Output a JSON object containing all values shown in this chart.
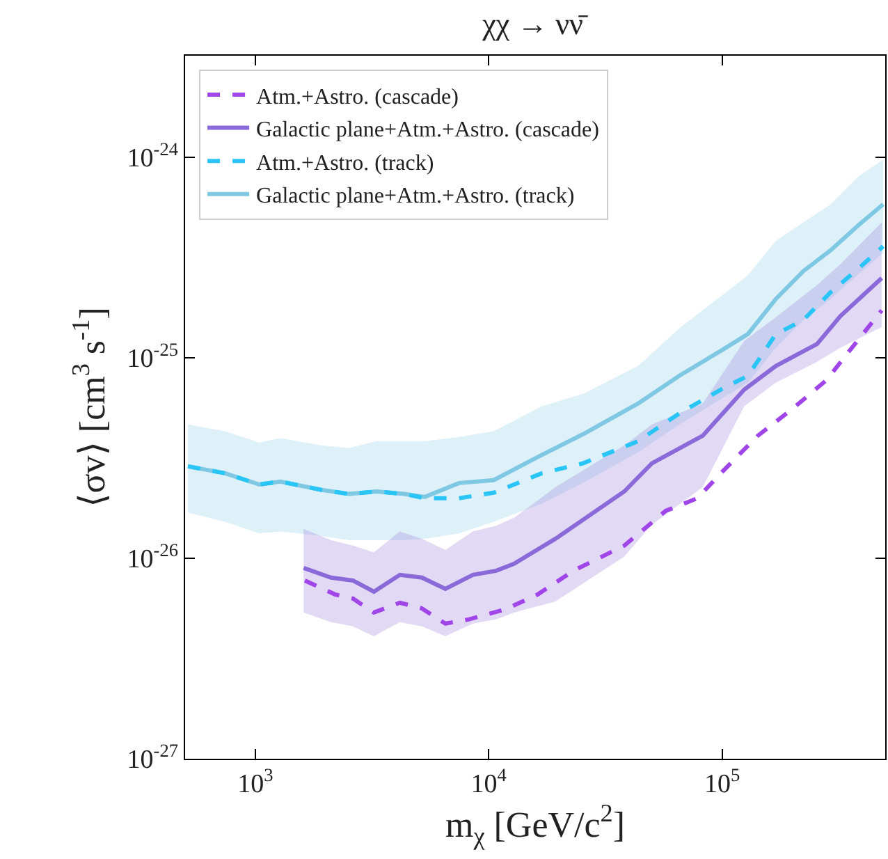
{
  "chart_data": {
    "type": "line",
    "title": "χχ → νν̄",
    "xlabel": "m$_{χ}$ [GeV/c$^{2}$]",
    "ylabel": "⟨σv⟩ [cm$^{3}$ s$^{-1}$]",
    "log": "xy",
    "grid": false,
    "legend": "top left",
    "marker": "none",
    "xlim": [
      500,
      500000
    ],
    "ylim": [
      1e-27,
      3.2e-24
    ],
    "xticks": [
      {
        "value": 1000,
        "label": "10$^{3}$"
      },
      {
        "value": 10000,
        "label": "10$^{4}$"
      },
      {
        "value": 100000,
        "label": "10$^{5}$"
      }
    ],
    "yticks": [
      {
        "value": 1e-27,
        "label": "10$^{-27}$"
      },
      {
        "value": 1e-26,
        "label": "10$^{-26}$"
      },
      {
        "value": 1e-25,
        "label": "10$^{-25}$"
      },
      {
        "value": 1e-24,
        "label": "10$^{-24}$"
      }
    ],
    "series": [
      {
        "name": "Galactic plane+Atm.+Astro. (track)",
        "color": "#7ec8e3",
        "line_style": "solid",
        "x": [
          514,
          741,
          1040,
          1280,
          1920,
          2520,
          3300,
          4340,
          5320,
          7460,
          10500,
          16870,
          25350,
          43650,
          65600,
          98600,
          129000,
          170000,
          223000,
          292000,
          384000,
          490000
        ],
        "values": [
          2.87e-26,
          2.65e-26,
          2.33e-26,
          2.41e-26,
          2.19e-26,
          2.09e-26,
          2.15e-26,
          2.09e-26,
          2.02e-26,
          2.37e-26,
          2.45e-26,
          3.27e-26,
          4.15e-26,
          5.9e-26,
          8.12e-26,
          1.08e-25,
          1.31e-25,
          1.96e-25,
          2.7e-25,
          3.43e-25,
          4.57e-25,
          5.81e-25
        ],
        "upper": [
          4.64e-26,
          4.29e-26,
          3.77e-26,
          3.96e-26,
          3.65e-26,
          3.54e-26,
          3.83e-26,
          3.83e-26,
          3.83e-26,
          4.02e-26,
          4.29e-26,
          5.71e-26,
          6.6e-26,
          9.08e-26,
          1.4e-25,
          2.02e-25,
          2.57e-25,
          3.83e-25,
          4.72e-25,
          5.81e-25,
          8e-25,
          9.7e-25
        ],
        "lower": [
          1.69e-26,
          1.52e-26,
          1.33e-26,
          1.36e-26,
          1.29e-26,
          1.23e-26,
          1.23e-26,
          1.23e-26,
          1.25e-26,
          1.33e-26,
          1.52e-26,
          1.87e-26,
          2.37e-26,
          3.37e-26,
          4.64e-26,
          6.19e-26,
          7.5e-26,
          1.12e-25,
          1.54e-25,
          1.96e-25,
          2.61e-25,
          3.32e-25
        ]
      },
      {
        "name": "Atm.+Astro. (track)",
        "color": "#29c5f6",
        "line_style": "dashed",
        "x": [
          514,
          741,
          1040,
          1280,
          1920,
          2520,
          3300,
          4340,
          5320,
          7460,
          10500,
          16870,
          25350,
          43650,
          65600,
          98600,
          129000,
          170000,
          223000,
          292000,
          384000,
          490000
        ],
        "values": [
          2.87e-26,
          2.65e-26,
          2.33e-26,
          2.41e-26,
          2.19e-26,
          2.09e-26,
          2.15e-26,
          2.09e-26,
          1.99e-26,
          1.99e-26,
          2.12e-26,
          2.65e-26,
          2.97e-26,
          3.83e-26,
          5.27e-26,
          6.92e-26,
          8.12e-26,
          1.31e-25,
          1.54e-25,
          2.12e-25,
          2.78e-25,
          3.59e-25
        ]
      },
      {
        "name": "Galactic plane+Atm.+Astro. (cascade)",
        "color": "#8a6ad9",
        "line_style": "solid",
        "x": [
          1610,
          2110,
          2620,
          3220,
          4160,
          5170,
          6520,
          8550,
          10770,
          12850,
          19320,
          38100,
          50000,
          82600,
          124300,
          169800,
          255300,
          321300,
          483000
        ],
        "values": [
          8.94e-27,
          8e-27,
          7.74e-27,
          6.81e-27,
          8.26e-27,
          8e-27,
          7.03e-27,
          8.26e-27,
          8.66e-27,
          9.38e-27,
          1.25e-26,
          2.15e-26,
          2.97e-26,
          4.08e-26,
          6.92e-26,
          9.08e-26,
          1.17e-25,
          1.61e-25,
          2.49e-25
        ],
        "upper": [
          1.4e-26,
          1.23e-26,
          1.155e-26,
          1.07e-26,
          1.36e-26,
          1.25e-26,
          1.1e-26,
          1.36e-26,
          1.45e-26,
          1.59e-26,
          2.26e-26,
          3.65e-26,
          4.64e-26,
          5.9e-26,
          1.21e-25,
          1.59e-25,
          2.3e-25,
          2.92e-25,
          4.72e-25
        ],
        "lower": [
          5.36e-27,
          4.8e-27,
          4.57e-27,
          4.08e-27,
          4.8e-27,
          4.57e-27,
          4.08e-27,
          4.72e-27,
          4.95e-27,
          5.36e-27,
          6.09e-27,
          1.02e-26,
          1.47e-26,
          2.26e-26,
          5.71e-26,
          7.5e-26,
          9.53e-26,
          1.12e-25,
          1.42e-25
        ]
      },
      {
        "name": "Atm.+Astro. (cascade)",
        "color": "#a045e8",
        "line_style": "dashed",
        "x": [
          1630,
          2200,
          2620,
          3220,
          4160,
          5170,
          6520,
          8200,
          11690,
          16190,
          23060,
          38100,
          57300,
          78300,
          102800,
          142300,
          202700,
          280600,
          348900,
          483000
        ],
        "values": [
          7.74e-27,
          6.59e-27,
          6.29e-27,
          5.36e-27,
          6e-27,
          5.62e-27,
          4.72e-27,
          4.95e-27,
          5.54e-27,
          6.59e-27,
          8.66e-27,
          1.155e-26,
          1.72e-26,
          1.99e-26,
          2.78e-26,
          4.08e-26,
          5.62e-26,
          7.74e-26,
          1.07e-25,
          1.72e-25
        ]
      }
    ]
  }
}
